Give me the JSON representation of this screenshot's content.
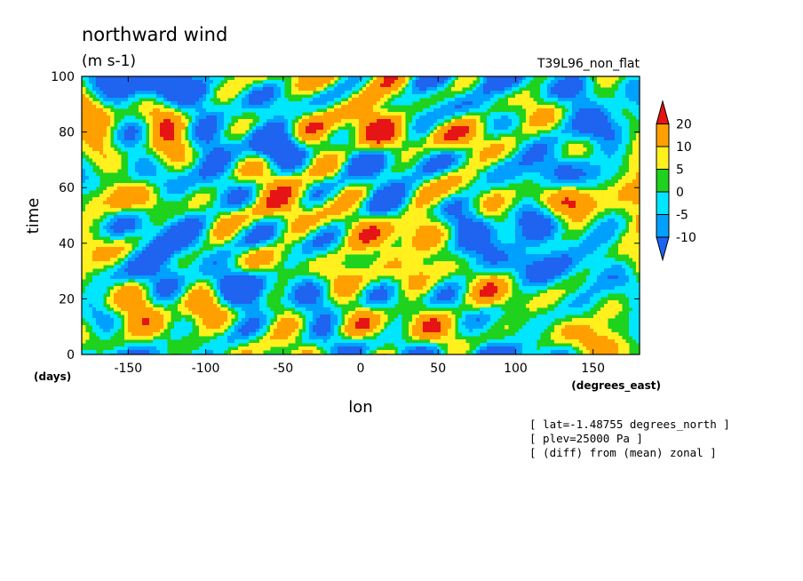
{
  "chart_data": {
    "type": "heatmap",
    "title": "northward wind",
    "units": "(m s-1)",
    "run_label": "T39L96_non_flat",
    "xlabel": "lon",
    "ylabel": "time",
    "x_units": "(degrees_east)",
    "y_units": "(days)",
    "xlim": [
      -180,
      180
    ],
    "ylim": [
      0,
      100
    ],
    "x_ticks": [
      -150,
      -100,
      -50,
      0,
      50,
      100,
      150
    ],
    "x_tick_labels": [
      "-150",
      "-100",
      "-50",
      "0",
      "50",
      "100",
      "150"
    ],
    "y_ticks": [
      0,
      20,
      40,
      60,
      80,
      100
    ],
    "y_tick_labels": [
      "0",
      "20",
      "40",
      "60",
      "80",
      "100"
    ],
    "colorbar": {
      "levels": [
        -10,
        -5,
        0,
        5,
        10,
        20
      ],
      "level_labels": [
        "-10",
        "-5",
        "0",
        "5",
        "10",
        "20"
      ],
      "colors": [
        "#1e64f0",
        "#00a0ff",
        "#00e6ff",
        "#1ed21e",
        "#fff01e",
        "#ffa000",
        "#e61414"
      ],
      "extend": "both"
    },
    "annotations": [
      "[ lat=-1.48755 degrees_north ]",
      "[ plev=25000 Pa ]",
      "[ (diff) from (mean) zonal ]"
    ]
  }
}
